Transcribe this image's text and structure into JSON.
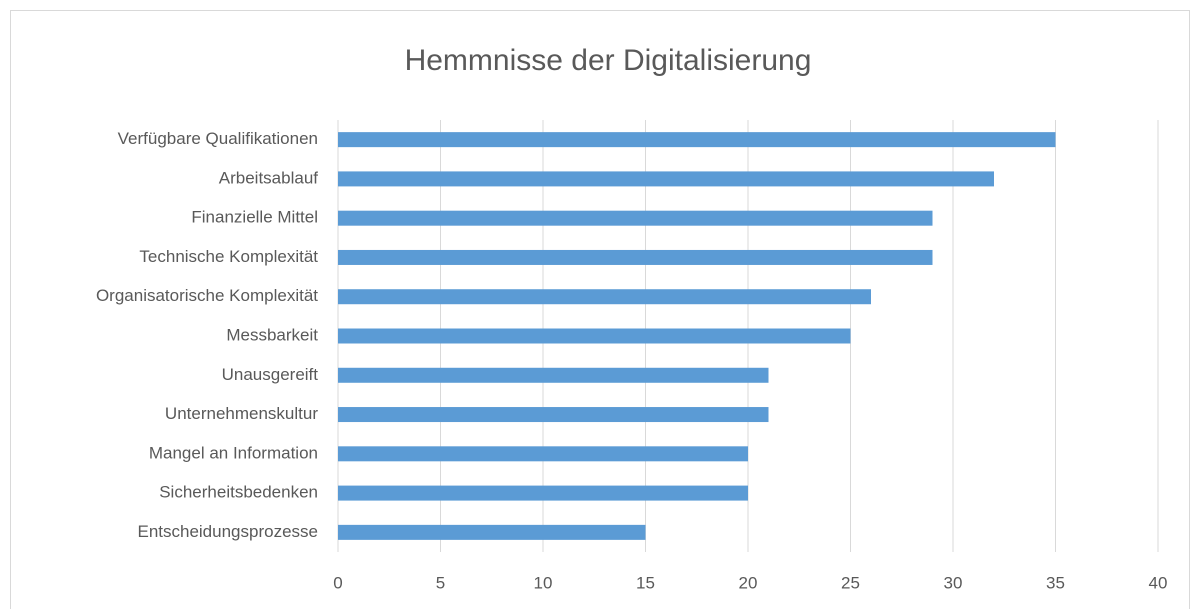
{
  "chart_data": {
    "type": "bar",
    "orientation": "horizontal",
    "title": "Hemmnisse der Digitalisierung",
    "categories": [
      "Verfügbare Qualifikationen",
      "Arbeitsablauf",
      "Finanzielle Mittel",
      "Technische Komplexität",
      "Organisatorische Komplexität",
      "Messbarkeit",
      "Unausgereift",
      "Unternehmenskultur",
      "Mangel an Information",
      "Sicherheitsbedenken",
      "Entscheidungsprozesse"
    ],
    "values": [
      35,
      32,
      29,
      29,
      26,
      25,
      21,
      21,
      20,
      20,
      15
    ],
    "color": "#5b9bd5",
    "xlim": [
      0,
      40
    ],
    "xticks": [
      0,
      5,
      10,
      15,
      20,
      25,
      30,
      35,
      40
    ],
    "grid": true
  }
}
